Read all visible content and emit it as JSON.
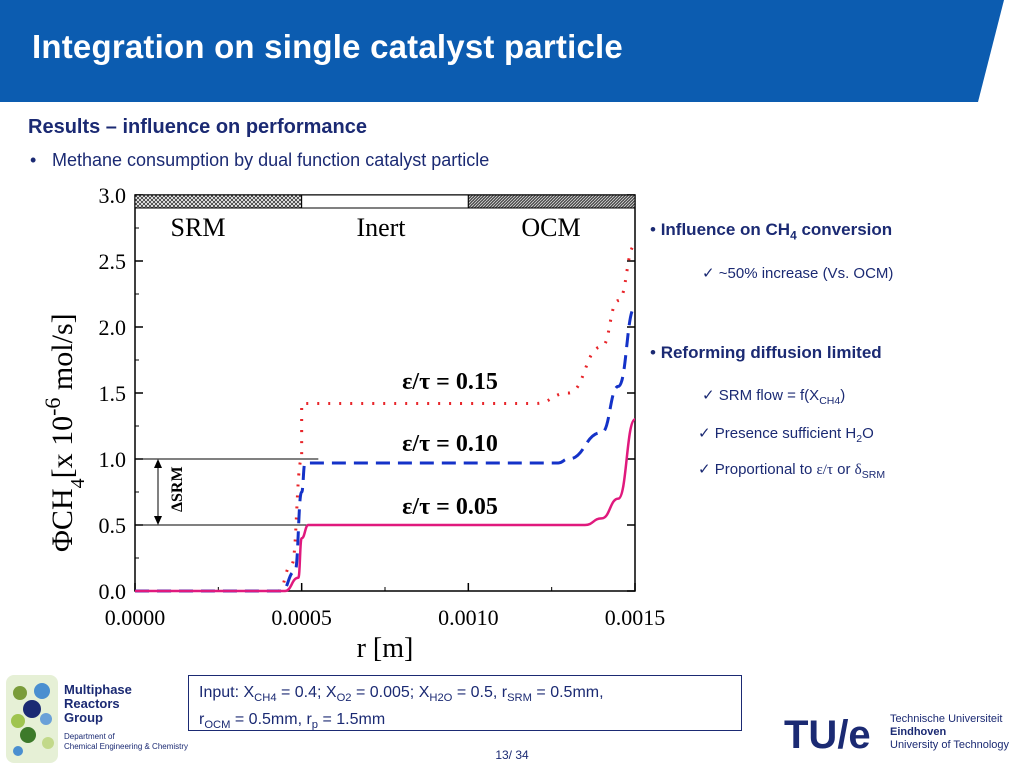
{
  "header": {
    "title": "Integration on single catalyst particle",
    "color": "#0c5cb0"
  },
  "section": {
    "subtitle": "Results – influence on performance",
    "bullet": "Methane consumption by dual function catalyst particle",
    "bullet_marker": "•"
  },
  "chart_data": {
    "type": "line",
    "xlabel": "r [m]",
    "ylabel_parts": {
      "phi": "Φ",
      "ch": "CH",
      "sub4": "4",
      "bracket": "[x 10",
      "exp": "-6",
      "unit": "mol/s]"
    },
    "xlim": [
      0.0,
      0.0015
    ],
    "ylim": [
      0.0,
      3.0
    ],
    "xticks": [
      "0.0000",
      "0.0005",
      "0.0010",
      "0.0015"
    ],
    "yticks": [
      "0.0",
      "0.5",
      "1.0",
      "1.5",
      "2.0",
      "2.5",
      "3.0"
    ],
    "zones": [
      "SRM",
      "Inert",
      "OCM"
    ],
    "delta_label": "ΔSRM",
    "series": [
      {
        "name": "ε/τ = 0.15",
        "style": "dotted",
        "color": "#e8252a",
        "x": [
          0,
          0.00043,
          0.00047,
          0.0005,
          0.0005,
          0.0012,
          0.0013,
          0.0014,
          0.00145,
          0.0015
        ],
        "y": [
          0,
          0,
          0.2,
          1.0,
          1.42,
          1.42,
          1.5,
          1.85,
          2.2,
          2.62
        ]
      },
      {
        "name": "ε/τ = 0.10",
        "style": "dashed",
        "color": "#1432c8",
        "x": [
          0,
          0.00044,
          0.00048,
          0.0005,
          0.00051,
          0.00127,
          0.0013,
          0.0014,
          0.00145,
          0.0015
        ],
        "y": [
          0,
          0,
          0.15,
          0.75,
          0.97,
          0.97,
          1.0,
          1.2,
          1.55,
          2.15
        ]
      },
      {
        "name": "ε/τ = 0.05",
        "style": "solid",
        "color": "#e0197d",
        "x": [
          0,
          0.00045,
          0.00049,
          0.0005,
          0.00052,
          0.00135,
          0.0014,
          0.00145,
          0.0015
        ],
        "y": [
          0,
          0,
          0.1,
          0.4,
          0.5,
          0.5,
          0.55,
          0.7,
          1.3
        ]
      }
    ]
  },
  "right_panel": {
    "h1_bullet": "•",
    "h1": "Influence on CH",
    "h1_sub": "4",
    "h1_tail": " conversion",
    "c1": "~50% increase (Vs. OCM)",
    "h2": "Reforming diffusion limited",
    "c2_pre": "SRM flow = f(X",
    "c2_sub": "CH4",
    "c2_post": ")",
    "c3_pre": "Presence sufficient H",
    "c3_sub": "2",
    "c3_post": "O",
    "c4_pre": "Proportional to ",
    "c4_sym": "ε/τ",
    "c4_or": " or ",
    "c4_delta": "δ",
    "c4_sub": "SRM",
    "check": "✓"
  },
  "input_box": {
    "l1_a": "Input: X",
    "l1_s1": "CH4",
    "l1_b": " = 0.4; X",
    "l1_s2": "O2",
    "l1_c": " = 0.005; X",
    "l1_s3": "H2O",
    "l1_d": " = 0.5, r",
    "l1_s4": "SRM",
    "l1_e": " = 0.5mm,",
    "l2_a": "r",
    "l2_s1": "OCM",
    "l2_b": " = 0.5mm, r",
    "l2_s2": "p",
    "l2_c": " = 1.5mm"
  },
  "footer": {
    "page": "13/ 34",
    "group_l1": "Multiphase",
    "group_l2": "Reactors",
    "group_l3": "Group",
    "dept_l1": "Department of",
    "dept_l2": "Chemical Engineering & Chemistry",
    "tue_logo": "TU/e",
    "tue_l1": "Technische Universiteit",
    "tue_l2": "Eindhoven",
    "tue_l3": "University of Technology"
  }
}
